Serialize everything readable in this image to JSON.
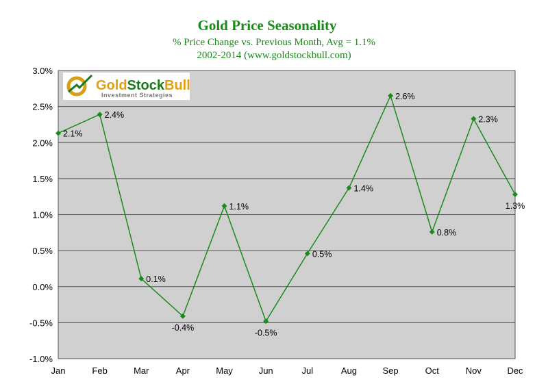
{
  "chart_data": {
    "type": "line",
    "title": "Gold Price Seasonality",
    "subtitle": "% Price Change vs. Previous Month, Avg = 1.1%",
    "subtitle2": "2002-2014 (www.goldstockbull.com)",
    "xlabel": "",
    "ylabel": "",
    "categories": [
      "Jan",
      "Feb",
      "Mar",
      "Apr",
      "May",
      "Jun",
      "Jul",
      "Aug",
      "Sep",
      "Oct",
      "Nov",
      "Dec"
    ],
    "values": [
      2.13,
      2.39,
      0.11,
      -0.41,
      1.12,
      -0.48,
      0.46,
      1.37,
      2.65,
      0.76,
      2.33,
      1.28
    ],
    "data_labels": [
      "2.1%",
      "2.4%",
      "0.1%",
      "-0.4%",
      "1.1%",
      "-0.5%",
      "0.5%",
      "1.4%",
      "2.6%",
      "0.8%",
      "2.3%",
      "1.3%"
    ],
    "yticks": [
      "-1.0%",
      "-0.5%",
      "0.0%",
      "0.5%",
      "1.0%",
      "1.5%",
      "2.0%",
      "2.5%",
      "3.0%"
    ],
    "ylim": [
      -1.0,
      3.0
    ],
    "grid": true,
    "legend": "none",
    "colors": {
      "line": "#1a8a1a",
      "plot_bg": "#d0d0d0",
      "title": "#1a8a1a"
    },
    "logo": {
      "name": "GoldStockBull",
      "tagline": "Investment Strategies"
    }
  }
}
